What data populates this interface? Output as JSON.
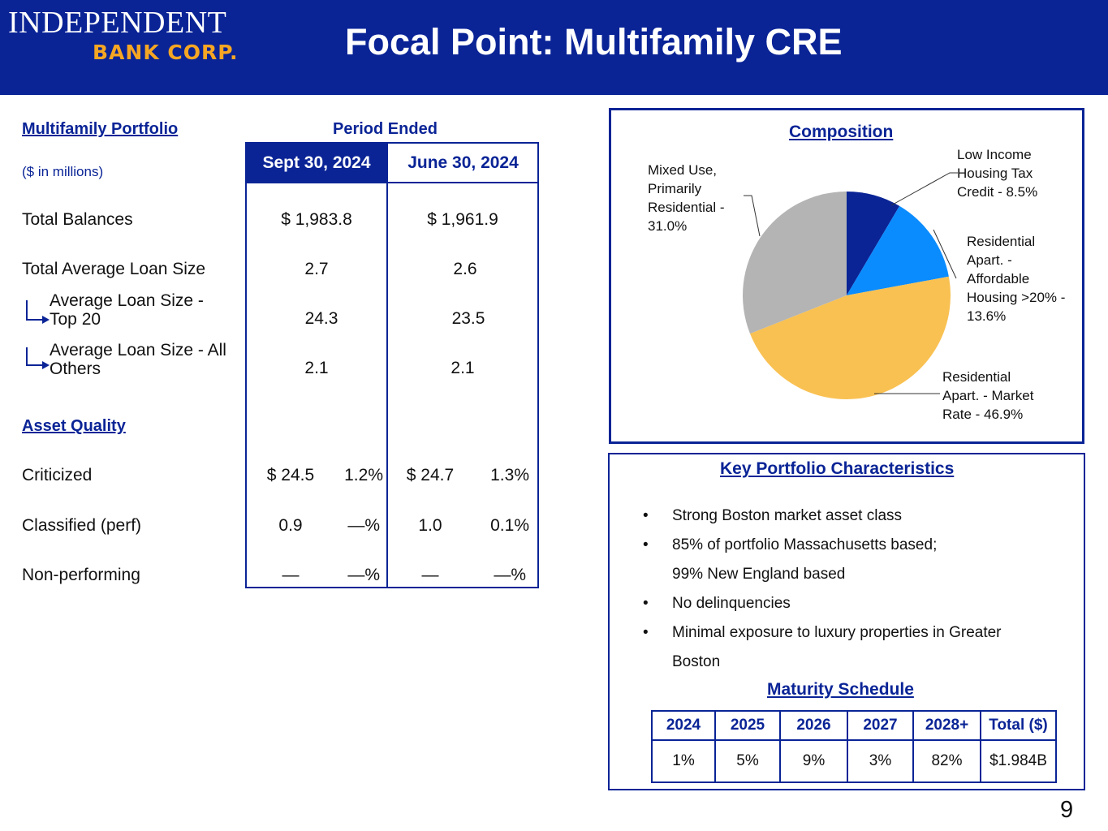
{
  "brand": {
    "logo_line1": "INDEPENDENT",
    "logo_line2": "BANK CORP.",
    "navy": "#0a2496",
    "gold": "#f5a623"
  },
  "title": "Focal Point: Multifamily CRE",
  "portfolio": {
    "heading": "Multifamily Portfolio",
    "units": "($ in millions)",
    "period_heading": "Period Ended",
    "col1": "Sept 30, 2024",
    "col2": "June 30, 2024",
    "rows": [
      {
        "label": "Total Balances",
        "v1": "$ 1,983.8",
        "v2": "$ 1,961.9"
      },
      {
        "label": "Total Average Loan Size",
        "v1": "2.7",
        "v2": "2.6"
      },
      {
        "label_l1": "Average Loan Size -",
        "label_l2": "Top 20",
        "v1": "24.3",
        "v2": "23.5"
      },
      {
        "label_l1": "Average Loan Size - All",
        "label_l2": "Others",
        "v1": "2.1",
        "v2": "2.1"
      }
    ],
    "asset_quality_heading": "Asset Quality",
    "quality_rows": [
      {
        "label": "Criticized",
        "a1": "$ 24.5",
        "p1": "1.2%",
        "a2": "$ 24.7",
        "p2": "1.3%"
      },
      {
        "label": "Classified (perf)",
        "a1": "0.9",
        "p1": "—%",
        "a2": "1.0",
        "p2": "0.1%"
      },
      {
        "label": "Non-performing",
        "a1": "—",
        "p1": "—%",
        "a2": "—",
        "p2": "—%"
      }
    ]
  },
  "composition": {
    "heading": "Composition",
    "chart_data": {
      "type": "pie",
      "title": "Composition",
      "slices": [
        {
          "name": "Low Income Housing Tax Credit",
          "value": 8.5,
          "color": "#0a2496"
        },
        {
          "name": "Residential Apart. - Affordable Housing >20%",
          "value": 13.6,
          "color": "#0a8cff"
        },
        {
          "name": "Residential Apart. - Market Rate",
          "value": 46.9,
          "color": "#f9c152"
        },
        {
          "name": "Mixed Use, Primarily Residential",
          "value": 31.0,
          "color": "#b4b4b4"
        }
      ]
    },
    "labels": {
      "lihtc": [
        "Low Income",
        "Housing Tax",
        "Credit - 8.5%"
      ],
      "affordable": [
        "Residential",
        "Apart. -",
        "Affordable",
        "Housing >20% -",
        "13.6%"
      ],
      "market": [
        "Residential",
        "Apart. - Market",
        "Rate - 46.9%"
      ],
      "mixed": [
        "Mixed Use,",
        "Primarily",
        "Residential -",
        "31.0%"
      ]
    }
  },
  "characteristics": {
    "heading": "Key Portfolio Characteristics",
    "bullet_char": "•",
    "bullets": [
      [
        "Strong Boston market asset class"
      ],
      [
        "85% of portfolio Massachusetts based;",
        "99% New England based"
      ],
      [
        "No delinquencies"
      ],
      [
        "Minimal exposure to luxury properties in Greater",
        "Boston"
      ]
    ]
  },
  "maturity": {
    "heading": "Maturity Schedule",
    "headers": [
      "2024",
      "2025",
      "2026",
      "2027",
      "2028+",
      "Total ($)"
    ],
    "values": [
      "1%",
      "5%",
      "9%",
      "3%",
      "82%",
      "$1.984B"
    ]
  },
  "page_number": "9"
}
